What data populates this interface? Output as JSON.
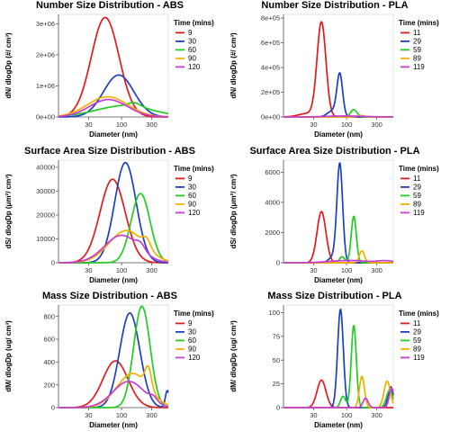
{
  "chart_data": [
    {
      "type": "line",
      "title": "Number Size Distribution - ABS",
      "xlabel": "Diameter (nm)",
      "ylabel": "dN/ dlogDp (#/ cm³)",
      "xscale": "log",
      "xlim": [
        10,
        550
      ],
      "xticks": [
        {
          "v": 30,
          "label": "30"
        },
        {
          "v": 100,
          "label": "100"
        },
        {
          "v": 300,
          "label": "300"
        }
      ],
      "ylim": [
        0,
        3300000
      ],
      "yticks": [
        {
          "v": 0,
          "label": "0e+00"
        },
        {
          "v": 1000000,
          "label": "1e+06"
        },
        {
          "v": 2000000,
          "label": "2e+06"
        },
        {
          "v": 3000000,
          "label": "3e+06"
        }
      ],
      "legend_title": "Time (mins)",
      "legend_position": "right",
      "series": [
        {
          "name": "9",
          "color": "#e31a1c",
          "peaks": [
            {
              "mu": 55,
              "s": 0.22,
              "a": 3200000
            }
          ]
        },
        {
          "name": "30",
          "color": "#1f3fbf",
          "peaks": [
            {
              "mu": 90,
              "s": 0.24,
              "a": 1350000
            }
          ]
        },
        {
          "name": "60",
          "color": "#22cc22",
          "peaks": [
            {
              "mu": 110,
              "s": 0.45,
              "a": 360000
            },
            {
              "mu": 160,
              "s": 0.1,
              "a": 120000
            }
          ]
        },
        {
          "name": "90",
          "color": "#f4b000",
          "peaks": [
            {
              "mu": 60,
              "s": 0.32,
              "a": 650000
            }
          ]
        },
        {
          "name": "120",
          "color": "#c83cd6",
          "peaks": [
            {
              "mu": 62,
              "s": 0.3,
              "a": 560000
            }
          ]
        }
      ]
    },
    {
      "type": "line",
      "title": "Number Size Distribution - PLA",
      "xlabel": "Diameter (nm)",
      "ylabel": "dN/ dlogDp (#/ cm³)",
      "xscale": "log",
      "xlim": [
        10,
        550
      ],
      "xticks": [
        {
          "v": 30,
          "label": "30"
        },
        {
          "v": 100,
          "label": "100"
        },
        {
          "v": 300,
          "label": "300"
        }
      ],
      "ylim": [
        0,
        830000
      ],
      "yticks": [
        {
          "v": 0,
          "label": "0e+00"
        },
        {
          "v": 200000,
          "label": "2e+05"
        },
        {
          "v": 400000,
          "label": "4e+05"
        },
        {
          "v": 600000,
          "label": "6e+05"
        },
        {
          "v": 800000,
          "label": "8e+05"
        }
      ],
      "legend_title": "Time (mins)",
      "legend_position": "right",
      "series": [
        {
          "name": "11",
          "color": "#e31a1c",
          "peaks": [
            {
              "mu": 40,
              "s": 0.07,
              "a": 760000
            },
            {
              "mu": 25,
              "s": 0.15,
              "a": 30000
            }
          ]
        },
        {
          "name": "29",
          "color": "#1f3fbf",
          "peaks": [
            {
              "mu": 78,
              "s": 0.045,
              "a": 340000
            },
            {
              "mu": 60,
              "s": 0.08,
              "a": 50000
            }
          ]
        },
        {
          "name": "59",
          "color": "#22cc22",
          "peaks": [
            {
              "mu": 130,
              "s": 0.05,
              "a": 60000
            }
          ]
        },
        {
          "name": "89",
          "color": "#f4b000",
          "peaks": [
            {
              "mu": 170,
              "s": 0.05,
              "a": 12000
            }
          ]
        },
        {
          "name": "119",
          "color": "#c83cd6",
          "peaks": [
            {
              "mu": 95,
              "s": 0.3,
              "a": 8000
            }
          ]
        }
      ]
    },
    {
      "type": "line",
      "title": "Surface Area Size Distribution - ABS",
      "xlabel": "Diameter (nm)",
      "ylabel": "dS/ dlogDp (μm²/ cm³)",
      "xscale": "log",
      "xlim": [
        10,
        550
      ],
      "xticks": [
        {
          "v": 30,
          "label": "30"
        },
        {
          "v": 100,
          "label": "100"
        },
        {
          "v": 300,
          "label": "300"
        }
      ],
      "ylim": [
        0,
        43000
      ],
      "yticks": [
        {
          "v": 0,
          "label": "0"
        },
        {
          "v": 10000,
          "label": "10000"
        },
        {
          "v": 20000,
          "label": "20000"
        },
        {
          "v": 30000,
          "label": "30000"
        },
        {
          "v": 40000,
          "label": "40000"
        }
      ],
      "legend_title": "Time (mins)",
      "legend_position": "right",
      "series": [
        {
          "name": "9",
          "color": "#e31a1c",
          "peaks": [
            {
              "mu": 72,
              "s": 0.2,
              "a": 35000
            }
          ]
        },
        {
          "name": "30",
          "color": "#1f3fbf",
          "peaks": [
            {
              "mu": 115,
              "s": 0.17,
              "a": 42000
            }
          ]
        },
        {
          "name": "60",
          "color": "#22cc22",
          "peaks": [
            {
              "mu": 200,
              "s": 0.15,
              "a": 29000
            }
          ]
        },
        {
          "name": "90",
          "color": "#f4b000",
          "peaks": [
            {
              "mu": 120,
              "s": 0.28,
              "a": 13500
            },
            {
              "mu": 250,
              "s": 0.06,
              "a": 3500
            }
          ]
        },
        {
          "name": "120",
          "color": "#c83cd6",
          "peaks": [
            {
              "mu": 100,
              "s": 0.27,
              "a": 11500
            },
            {
              "mu": 200,
              "s": 0.07,
              "a": 2500
            }
          ]
        }
      ]
    },
    {
      "type": "line",
      "title": "Surface Area Size Distribution - PLA",
      "xlabel": "Diameter (nm)",
      "ylabel": "dS/ dlogDp (μm²/ cm³)",
      "xscale": "log",
      "xlim": [
        10,
        550
      ],
      "xticks": [
        {
          "v": 30,
          "label": "30"
        },
        {
          "v": 100,
          "label": "100"
        },
        {
          "v": 300,
          "label": "300"
        }
      ],
      "ylim": [
        0,
        6800
      ],
      "yticks": [
        {
          "v": 0,
          "label": "0"
        },
        {
          "v": 2000,
          "label": "2000"
        },
        {
          "v": 4000,
          "label": "4000"
        },
        {
          "v": 6000,
          "label": "6000"
        }
      ],
      "legend_title": "Time (mins)",
      "legend_position": "right",
      "series": [
        {
          "name": "11",
          "color": "#e31a1c",
          "peaks": [
            {
              "mu": 40,
              "s": 0.07,
              "a": 3400
            }
          ]
        },
        {
          "name": "29",
          "color": "#1f3fbf",
          "peaks": [
            {
              "mu": 78,
              "s": 0.045,
              "a": 6500
            },
            {
              "mu": 62,
              "s": 0.07,
              "a": 400
            }
          ]
        },
        {
          "name": "59",
          "color": "#22cc22",
          "peaks": [
            {
              "mu": 130,
              "s": 0.04,
              "a": 3100
            },
            {
              "mu": 85,
              "s": 0.04,
              "a": 400
            }
          ]
        },
        {
          "name": "89",
          "color": "#f4b000",
          "peaks": [
            {
              "mu": 175,
              "s": 0.04,
              "a": 800
            }
          ]
        },
        {
          "name": "119",
          "color": "#c83cd6",
          "peaks": [
            {
              "mu": 110,
              "s": 0.3,
              "a": 150
            },
            {
              "mu": 420,
              "s": 0.12,
              "a": 120
            }
          ]
        }
      ]
    },
    {
      "type": "line",
      "title": "Mass Size Distribution - ABS",
      "xlabel": "Diameter (nm)",
      "ylabel": "dM/ dlogDp (ug/ cm³)",
      "xscale": "log",
      "xlim": [
        10,
        550
      ],
      "xticks": [
        {
          "v": 30,
          "label": "30"
        },
        {
          "v": 100,
          "label": "100"
        },
        {
          "v": 300,
          "label": "300"
        }
      ],
      "ylim": [
        0,
        900
      ],
      "yticks": [
        {
          "v": 0,
          "label": "0"
        },
        {
          "v": 200,
          "label": "200"
        },
        {
          "v": 400,
          "label": "400"
        },
        {
          "v": 600,
          "label": "600"
        },
        {
          "v": 800,
          "label": "800"
        }
      ],
      "legend_title": "Time (mins)",
      "legend_position": "right",
      "series": [
        {
          "name": "9",
          "color": "#e31a1c",
          "peaks": [
            {
              "mu": 80,
              "s": 0.2,
              "a": 410
            }
          ]
        },
        {
          "name": "30",
          "color": "#1f3fbf",
          "peaks": [
            {
              "mu": 135,
              "s": 0.16,
              "a": 830
            },
            {
              "mu": 530,
              "s": 0.03,
              "a": 150
            }
          ]
        },
        {
          "name": "60",
          "color": "#22cc22",
          "peaks": [
            {
              "mu": 210,
              "s": 0.13,
              "a": 890
            }
          ]
        },
        {
          "name": "90",
          "color": "#f4b000",
          "peaks": [
            {
              "mu": 150,
              "s": 0.25,
              "a": 300
            },
            {
              "mu": 265,
              "s": 0.05,
              "a": 180
            }
          ]
        },
        {
          "name": "120",
          "color": "#c83cd6",
          "peaks": [
            {
              "mu": 130,
              "s": 0.25,
              "a": 230
            },
            {
              "mu": 320,
              "s": 0.06,
              "a": 40
            }
          ]
        }
      ]
    },
    {
      "type": "line",
      "title": "Mass Size Distribution - PLA",
      "xlabel": "Diameter (nm)",
      "ylabel": "dM/ dlogDp (ug/ cm³)",
      "xscale": "log",
      "xlim": [
        10,
        550
      ],
      "xticks": [
        {
          "v": 30,
          "label": "30"
        },
        {
          "v": 100,
          "label": "100"
        },
        {
          "v": 300,
          "label": "300"
        }
      ],
      "ylim": [
        0,
        108
      ],
      "yticks": [
        {
          "v": 0,
          "label": "0"
        },
        {
          "v": 25,
          "label": "25"
        },
        {
          "v": 50,
          "label": "50"
        },
        {
          "v": 75,
          "label": "75"
        },
        {
          "v": 100,
          "label": "100"
        }
      ],
      "legend_title": "Time (mins)",
      "legend_position": "right",
      "series": [
        {
          "name": "11",
          "color": "#e31a1c",
          "peaks": [
            {
              "mu": 40,
              "s": 0.07,
              "a": 29
            }
          ]
        },
        {
          "name": "29",
          "color": "#1f3fbf",
          "peaks": [
            {
              "mu": 80,
              "s": 0.045,
              "a": 104
            },
            {
              "mu": 500,
              "s": 0.04,
              "a": 22
            }
          ]
        },
        {
          "name": "59",
          "color": "#22cc22",
          "peaks": [
            {
              "mu": 130,
              "s": 0.04,
              "a": 87
            },
            {
              "mu": 88,
              "s": 0.04,
              "a": 12
            },
            {
              "mu": 480,
              "s": 0.05,
              "a": 18
            }
          ]
        },
        {
          "name": "89",
          "color": "#f4b000",
          "peaks": [
            {
              "mu": 175,
              "s": 0.04,
              "a": 33
            },
            {
              "mu": 440,
              "s": 0.05,
              "a": 28
            }
          ]
        },
        {
          "name": "119",
          "color": "#c83cd6",
          "peaks": [
            {
              "mu": 200,
              "s": 0.04,
              "a": 10
            },
            {
              "mu": 520,
              "s": 0.04,
              "a": 20
            }
          ]
        }
      ]
    }
  ]
}
